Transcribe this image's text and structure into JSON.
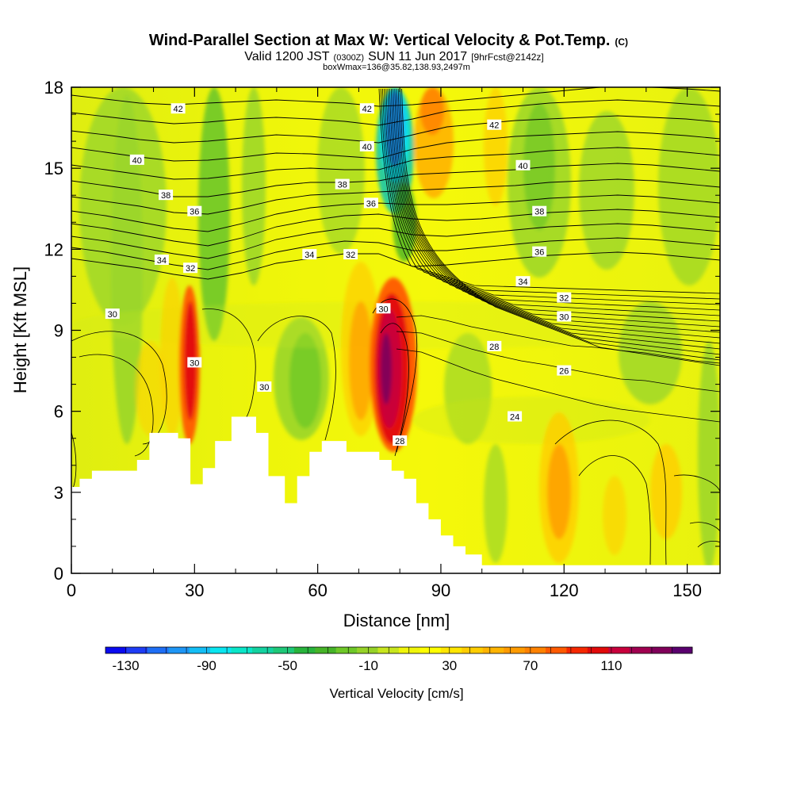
{
  "chart_data": {
    "type": "heatmap",
    "title": "Wind-Parallel Section at Max W: Vertical Velocity & Pot.Temp.",
    "title_mark": "(C)",
    "subtitle_parts": [
      "Valid 1200 JST",
      "(0300Z)",
      "SUN 11 Jun 2017",
      "[9hrFcst@2142z]"
    ],
    "subtitle2": "boxWmax=136@35.82,138.93,2497m",
    "xlabel": "Distance [nm]",
    "ylabel": "Height [Kft MSL]",
    "xlim": [
      0,
      158
    ],
    "ylim": [
      0,
      18
    ],
    "x_ticks": [
      0,
      30,
      60,
      90,
      120,
      150
    ],
    "y_ticks": [
      0,
      3,
      6,
      9,
      12,
      15,
      18
    ],
    "colorbar": {
      "label": "Vertical Velocity [cm/s]",
      "range": [
        -140,
        150
      ],
      "tick_labels": [
        -130,
        -90,
        -50,
        -10,
        30,
        70,
        110
      ],
      "colors": [
        "#0a0af0",
        "#1e3cf5",
        "#1e6ef5",
        "#1e96f5",
        "#14bef5",
        "#0ae6f0",
        "#0ae6c8",
        "#14d2a0",
        "#1ec878",
        "#28b43c",
        "#46b428",
        "#6ec828",
        "#96d228",
        "#c8e61e",
        "#f0f50a",
        "#ffff00",
        "#ffe600",
        "#ffcd00",
        "#ffb400",
        "#ff9b00",
        "#ff8200",
        "#ff5a00",
        "#f52800",
        "#e10a0a",
        "#c8003c",
        "#a00050",
        "#80005a",
        "#5a006e"
      ]
    },
    "contour_labels": [
      {
        "x": 26,
        "y": 17.2,
        "text": "42"
      },
      {
        "x": 72,
        "y": 17.2,
        "text": "42"
      },
      {
        "x": 103,
        "y": 16.6,
        "text": "42"
      },
      {
        "x": 16,
        "y": 15.3,
        "text": "40"
      },
      {
        "x": 72,
        "y": 15.8,
        "text": "40"
      },
      {
        "x": 110,
        "y": 15.1,
        "text": "40"
      },
      {
        "x": 23,
        "y": 14.0,
        "text": "38"
      },
      {
        "x": 66,
        "y": 14.4,
        "text": "38"
      },
      {
        "x": 114,
        "y": 13.4,
        "text": "38"
      },
      {
        "x": 30,
        "y": 13.4,
        "text": "36"
      },
      {
        "x": 73,
        "y": 13.7,
        "text": "36"
      },
      {
        "x": 114,
        "y": 11.9,
        "text": "36"
      },
      {
        "x": 22,
        "y": 11.6,
        "text": "34"
      },
      {
        "x": 58,
        "y": 11.8,
        "text": "34"
      },
      {
        "x": 110,
        "y": 10.8,
        "text": "34"
      },
      {
        "x": 29,
        "y": 11.3,
        "text": "32"
      },
      {
        "x": 68,
        "y": 11.8,
        "text": "32"
      },
      {
        "x": 120,
        "y": 10.2,
        "text": "32"
      },
      {
        "x": 10,
        "y": 9.6,
        "text": "30"
      },
      {
        "x": 30,
        "y": 7.8,
        "text": "30"
      },
      {
        "x": 47,
        "y": 6.9,
        "text": "30"
      },
      {
        "x": 76,
        "y": 9.8,
        "text": "30"
      },
      {
        "x": 120,
        "y": 9.5,
        "text": "30"
      },
      {
        "x": 103,
        "y": 8.4,
        "text": "28"
      },
      {
        "x": 80,
        "y": 4.9,
        "text": "28"
      },
      {
        "x": 120,
        "y": 7.5,
        "text": "26"
      },
      {
        "x": 108,
        "y": 5.8,
        "text": "24"
      }
    ]
  }
}
